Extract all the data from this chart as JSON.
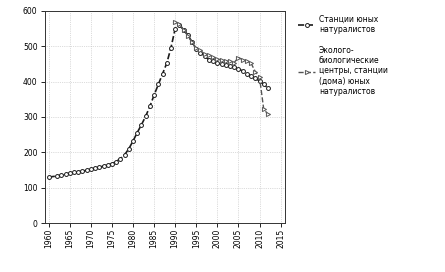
{
  "series1_label": "Станции юных\nнатуралистов",
  "series2_label": "Эколого-\nбиологические\nцентры, станции\n(дома) юных\nнатуралистов",
  "series1_x": [
    1960,
    1962,
    1963,
    1964,
    1965,
    1966,
    1967,
    1968,
    1969,
    1970,
    1971,
    1972,
    1973,
    1974,
    1975,
    1976,
    1977,
    1978,
    1979,
    1980,
    1981,
    1982,
    1983,
    1984,
    1985,
    1986,
    1987,
    1988,
    1989,
    1990,
    1991,
    1992,
    1993,
    1994,
    1995,
    1996,
    1997,
    1998,
    1999,
    2000,
    2001,
    2002,
    2003,
    2004,
    2005,
    2006,
    2007,
    2008,
    2009,
    2010,
    2011,
    2012
  ],
  "series1_y": [
    130,
    133,
    135,
    138,
    141,
    143,
    145,
    147,
    149,
    152,
    155,
    158,
    161,
    164,
    168,
    174,
    182,
    193,
    210,
    232,
    256,
    278,
    302,
    330,
    362,
    392,
    422,
    452,
    496,
    550,
    560,
    546,
    532,
    512,
    492,
    482,
    472,
    462,
    457,
    452,
    449,
    446,
    444,
    441,
    436,
    430,
    422,
    416,
    409,
    402,
    392,
    382
  ],
  "series2_x": [
    1990,
    1991,
    1992,
    1993,
    1994,
    1995,
    1996,
    1997,
    1998,
    1999,
    2000,
    2001,
    2002,
    2003,
    2004,
    2005,
    2006,
    2007,
    2008,
    2009,
    2010,
    2011,
    2012
  ],
  "series2_y": [
    568,
    564,
    546,
    530,
    511,
    494,
    488,
    478,
    474,
    469,
    464,
    461,
    459,
    457,
    454,
    468,
    462,
    458,
    452,
    428,
    412,
    322,
    308
  ],
  "xlim": [
    1959,
    2016
  ],
  "ylim": [
    0,
    600
  ],
  "yticks": [
    0,
    100,
    200,
    300,
    400,
    500,
    600
  ],
  "xticks": [
    1960,
    1965,
    1970,
    1975,
    1980,
    1985,
    1990,
    1995,
    2000,
    2005,
    2010,
    2015
  ],
  "bg_color": "#ffffff",
  "line1_color": "#1a1a1a",
  "line2_color": "#555555",
  "grid_color": "#bbbbbb",
  "figsize": [
    4.45,
    2.72
  ],
  "dpi": 100
}
